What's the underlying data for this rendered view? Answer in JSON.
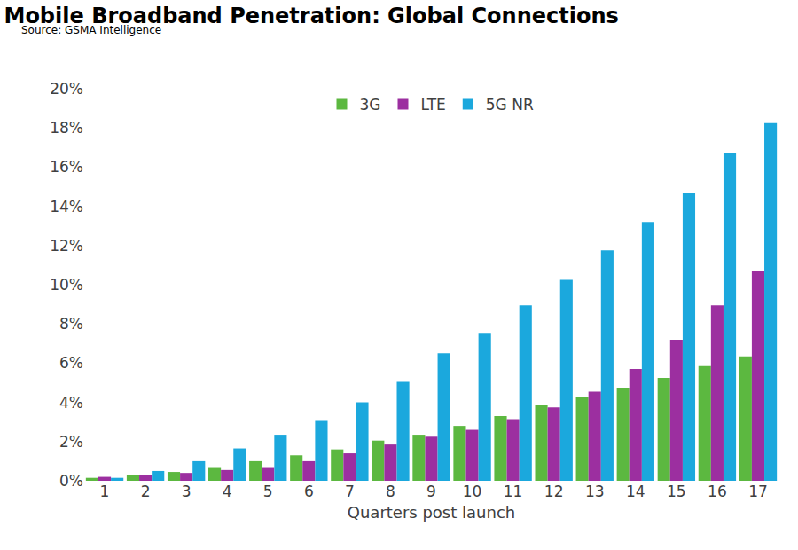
{
  "chart_data": {
    "type": "bar",
    "title": "Mobile Broadband Penetration: Global Connections",
    "subtitle": "Source: GSMA Intelligence",
    "x_label": "Quarters post launch",
    "categories": [
      "1",
      "2",
      "3",
      "4",
      "5",
      "6",
      "7",
      "8",
      "9",
      "10",
      "11",
      "12",
      "13",
      "14",
      "15",
      "16",
      "17"
    ],
    "series": [
      {
        "name": "3G",
        "color": "#5cb840",
        "values": [
          0.15,
          0.3,
          0.45,
          0.7,
          1.0,
          1.3,
          1.6,
          2.05,
          2.35,
          2.8,
          3.3,
          3.85,
          4.3,
          4.75,
          5.25,
          5.85,
          6.35
        ]
      },
      {
        "name": "LTE",
        "color": "#9c2fa0",
        "values": [
          0.2,
          0.3,
          0.4,
          0.55,
          0.7,
          1.0,
          1.4,
          1.85,
          2.25,
          2.6,
          3.15,
          3.75,
          4.55,
          5.7,
          7.2,
          8.95,
          10.7
        ]
      },
      {
        "name": "5G NR",
        "color": "#1ba8dd",
        "values": [
          0.15,
          0.5,
          1.0,
          1.65,
          2.35,
          3.05,
          4.0,
          5.05,
          6.5,
          7.55,
          8.95,
          10.25,
          11.75,
          13.2,
          14.7,
          16.7,
          18.25
        ]
      }
    ],
    "ylim": [
      0,
      20
    ],
    "yticks": [
      {
        "value": 0,
        "label": "0%"
      },
      {
        "value": 2,
        "label": "2%"
      },
      {
        "value": 4,
        "label": "4%"
      },
      {
        "value": 6,
        "label": "6%"
      },
      {
        "value": 8,
        "label": "8%"
      },
      {
        "value": 10,
        "label": "10%"
      },
      {
        "value": 12,
        "label": "12%"
      },
      {
        "value": 14,
        "label": "14%"
      },
      {
        "value": 16,
        "label": "16%"
      },
      {
        "value": 18,
        "label": "18%"
      },
      {
        "value": 20,
        "label": "20%"
      }
    ],
    "grid": false,
    "legend": "top"
  }
}
